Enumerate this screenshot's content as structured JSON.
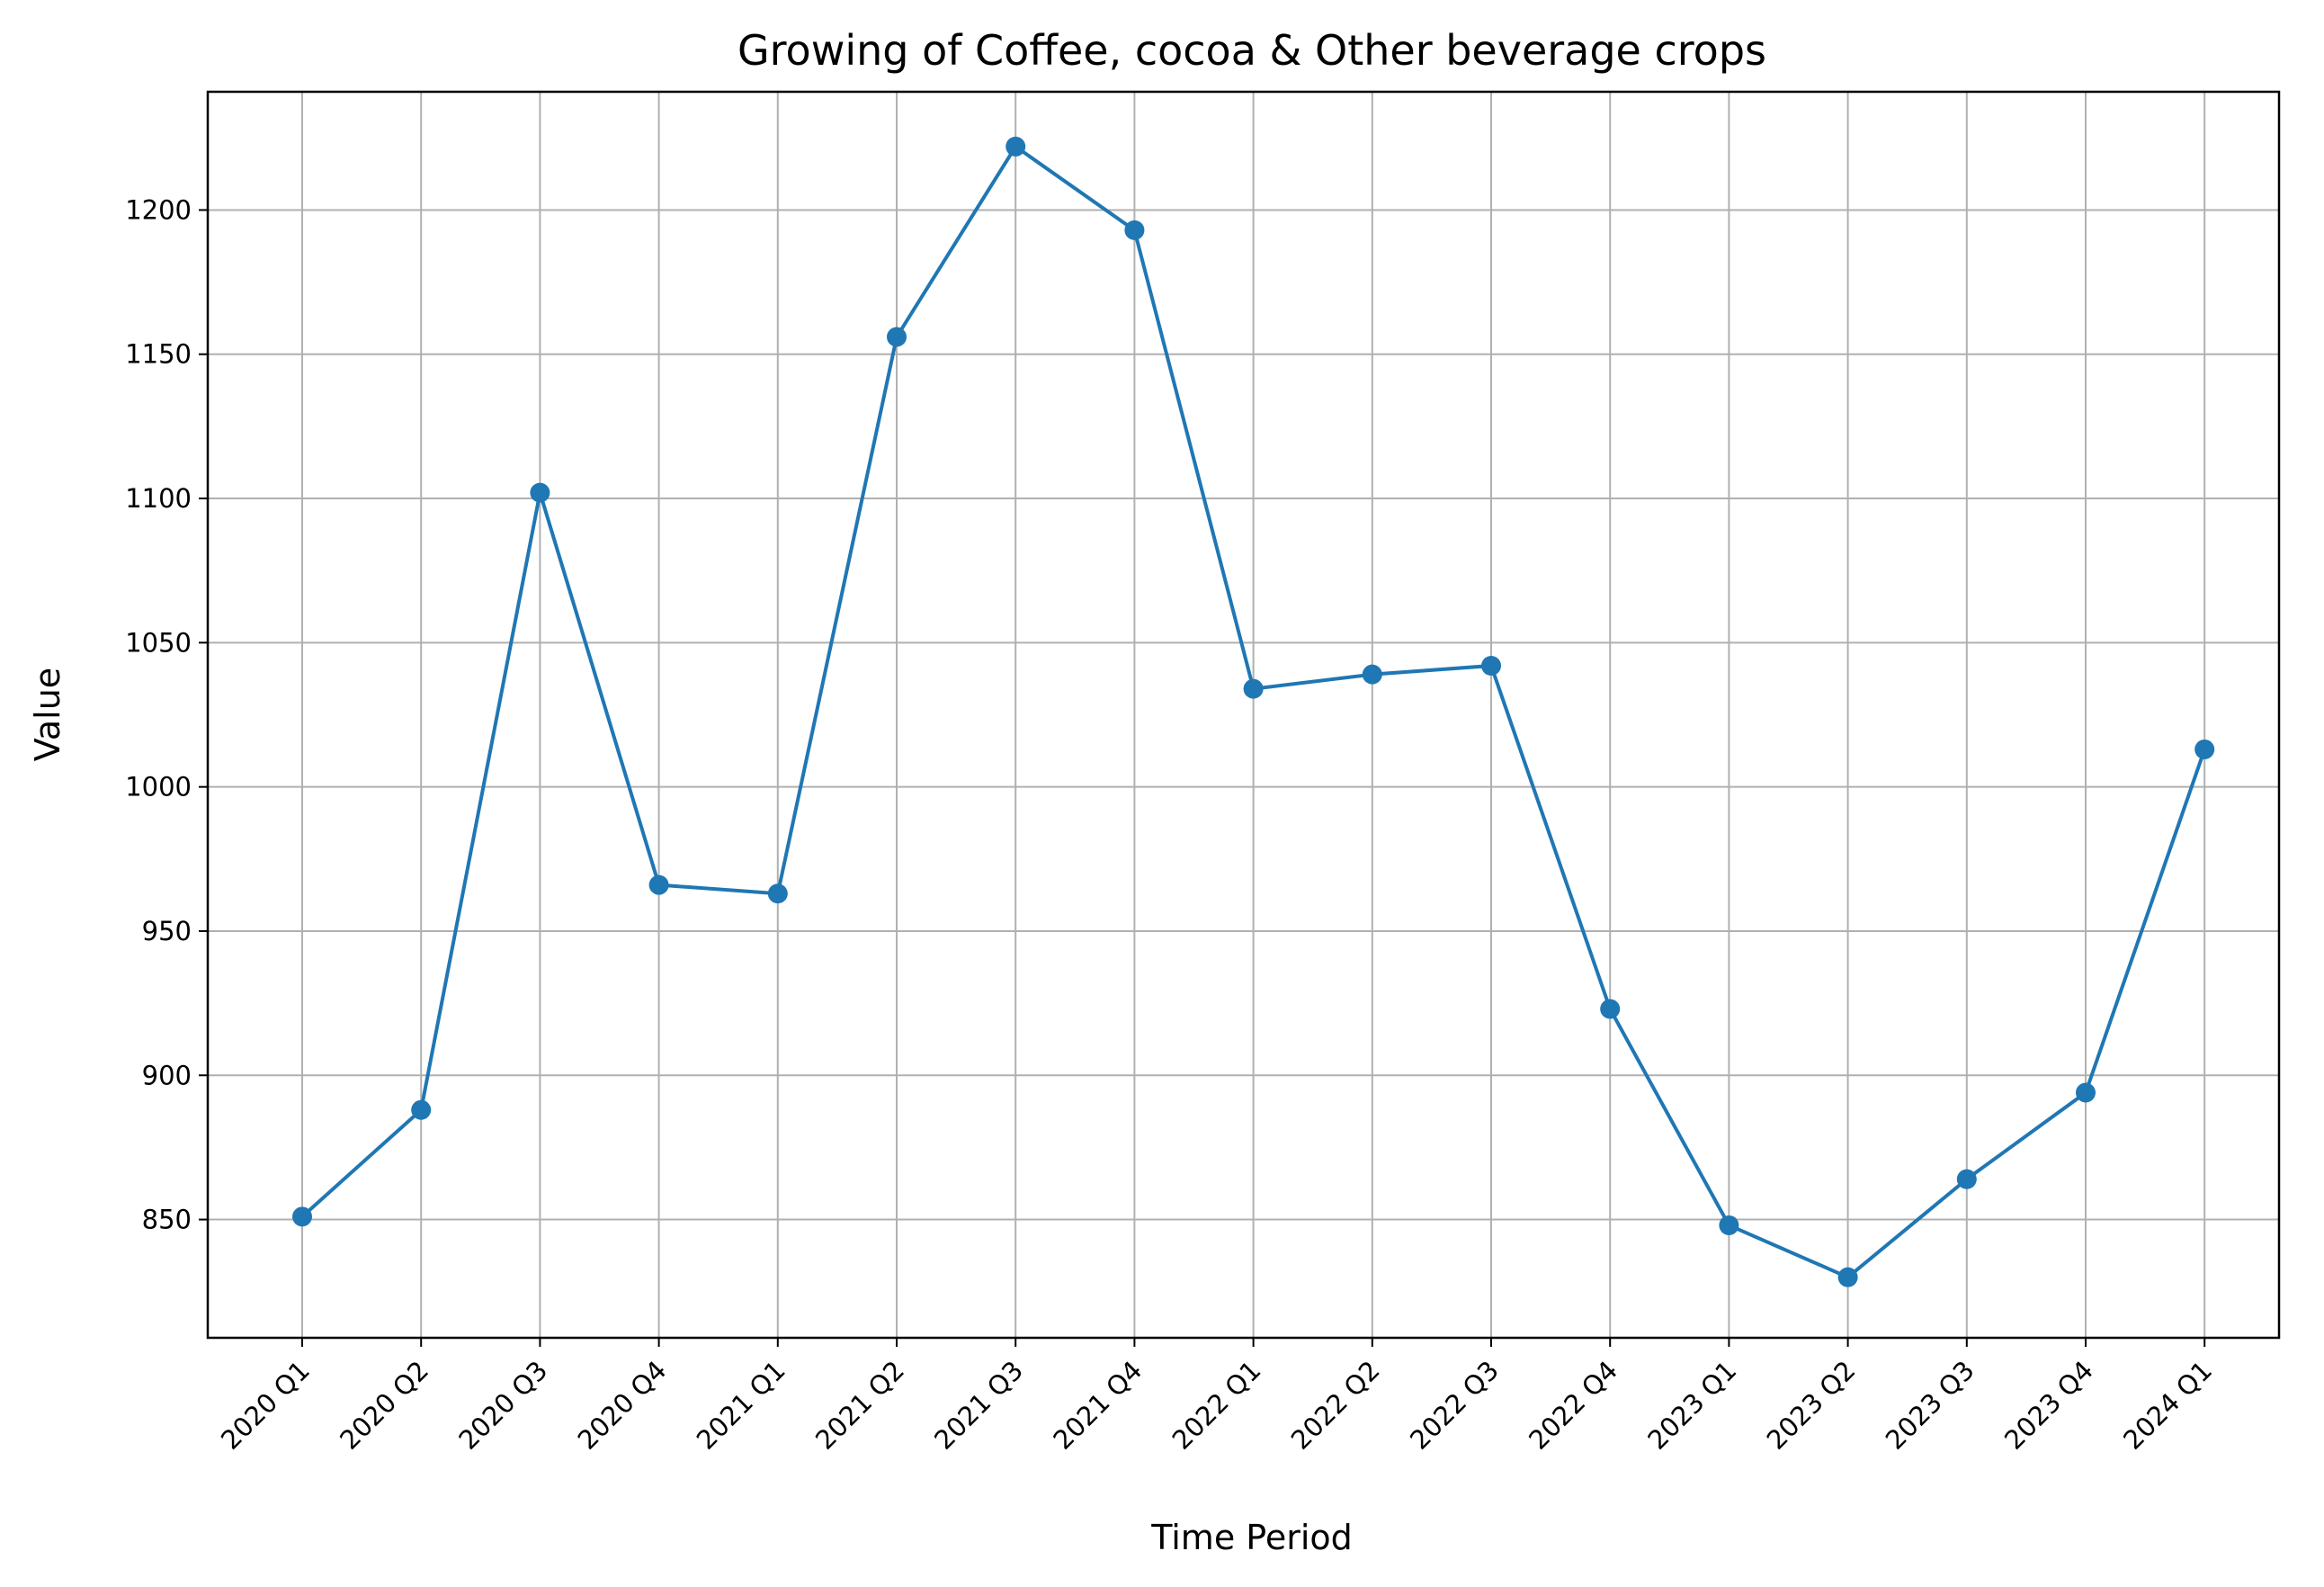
{
  "chart_data": {
    "type": "line",
    "title": "Growing of Coffee, cocoa & Other beverage crops",
    "xlabel": "Time Period",
    "ylabel": "Value",
    "categories": [
      "2020 Q1",
      "2020 Q2",
      "2020 Q3",
      "2020 Q4",
      "2021 Q1",
      "2021 Q2",
      "2021 Q3",
      "2021 Q4",
      "2022 Q1",
      "2022 Q2",
      "2022 Q3",
      "2022 Q4",
      "2023 Q1",
      "2023 Q2",
      "2023 Q3",
      "2023 Q4",
      "2024 Q1"
    ],
    "series": [
      {
        "name": "Value",
        "values": [
          851,
          888,
          1102,
          966,
          963,
          1156,
          1222,
          1193,
          1034,
          1039,
          1042,
          923,
          848,
          830,
          864,
          894,
          1013
        ]
      }
    ],
    "ylim": [
      809,
      1241
    ],
    "yticks": [
      850,
      900,
      950,
      1000,
      1050,
      1100,
      1150,
      1200
    ],
    "grid": true,
    "line_color": "#1f77b4",
    "marker": "circle"
  }
}
